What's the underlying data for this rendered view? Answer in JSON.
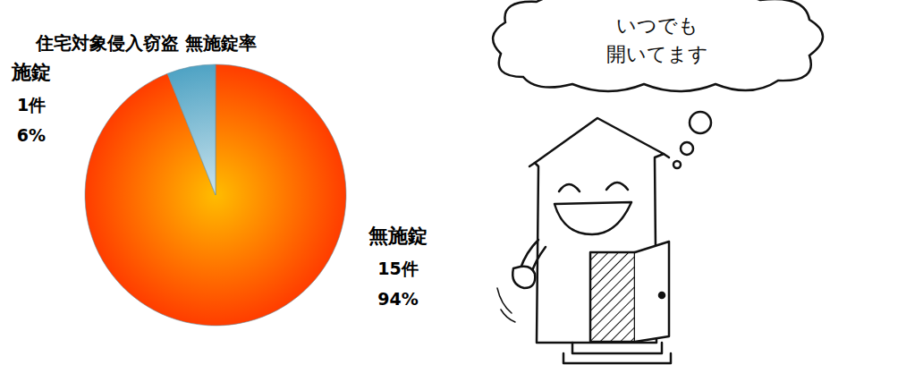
{
  "chart_data": {
    "type": "pie",
    "title": "住宅対象侵入窃盗 無施錠率",
    "categories": [
      "施錠",
      "無施錠"
    ],
    "values": [
      6,
      94
    ],
    "value_labels": [
      "6%",
      "94%"
    ],
    "count_labels": [
      "1件",
      "15件"
    ],
    "colors": [
      "#4fa3c4",
      "#ff3d00"
    ],
    "data_labels": true,
    "annotations": [
      "いつでも",
      "開いてます"
    ]
  }
}
